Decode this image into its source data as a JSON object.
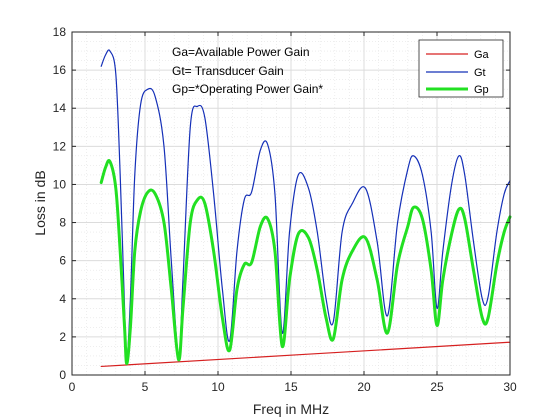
{
  "chart_data": {
    "type": "line",
    "xlabel": "Freq in MHz",
    "ylabel": "Loss in dB",
    "xlim": [
      0,
      30
    ],
    "ylim": [
      0,
      18
    ],
    "xticks": [
      0,
      5,
      10,
      15,
      20,
      25,
      30
    ],
    "yticks": [
      0,
      2,
      4,
      6,
      8,
      10,
      12,
      14,
      16,
      18
    ],
    "grid": true,
    "legend_position": "top-right",
    "annotations": [
      "Ga=Available Power Gain",
      "Gt= Transducer Gain",
      "Gp=*Operating Power Gain*"
    ],
    "series": [
      {
        "name": "Ga",
        "color": "#d62020",
        "x": [
          2,
          30
        ],
        "values": [
          0.45,
          1.72
        ]
      },
      {
        "name": "Gt",
        "color": "#1530b8",
        "x": [
          2.0,
          2.3,
          2.6,
          3.0,
          3.3,
          3.6,
          3.75,
          4.0,
          4.3,
          4.7,
          5.2,
          5.7,
          6.3,
          6.8,
          7.3,
          7.6,
          8.1,
          8.6,
          9.1,
          9.7,
          10.3,
          10.8,
          11.3,
          11.8,
          12.3,
          12.9,
          13.4,
          13.9,
          14.4,
          14.9,
          15.5,
          16.2,
          16.8,
          17.4,
          17.9,
          18.5,
          19.2,
          20.1,
          20.9,
          21.6,
          22.3,
          23.0,
          23.4,
          24.0,
          24.6,
          25.0,
          25.4,
          26.0,
          26.5,
          26.9,
          27.5,
          28.1,
          28.5,
          29.1,
          29.6,
          30.0
        ],
        "values": [
          16.2,
          16.8,
          17.0,
          15.8,
          10.5,
          3.5,
          0.7,
          4.0,
          10.5,
          14.2,
          15.0,
          14.6,
          12.0,
          6.0,
          1.0,
          5.0,
          13.0,
          14.1,
          13.5,
          9.5,
          4.5,
          1.8,
          6.5,
          9.2,
          9.6,
          11.8,
          12.1,
          9.5,
          2.2,
          7.5,
          10.5,
          9.8,
          7.5,
          4.0,
          2.8,
          7.5,
          9.0,
          9.8,
          7.0,
          3.1,
          8.0,
          10.8,
          11.5,
          10.5,
          7.5,
          3.5,
          6.5,
          10.0,
          11.5,
          10.5,
          7.0,
          4.0,
          4.1,
          7.5,
          9.5,
          10.2
        ]
      },
      {
        "name": "Gp",
        "color": "#22e022",
        "x": [
          2.0,
          2.3,
          2.6,
          3.0,
          3.3,
          3.6,
          3.75,
          4.0,
          4.3,
          4.7,
          5.2,
          5.7,
          6.3,
          6.8,
          7.3,
          7.6,
          8.1,
          8.6,
          9.1,
          9.7,
          10.3,
          10.8,
          11.3,
          11.8,
          12.3,
          12.9,
          13.4,
          13.9,
          14.4,
          14.9,
          15.5,
          16.2,
          16.8,
          17.4,
          17.9,
          18.5,
          19.2,
          20.1,
          20.9,
          21.6,
          22.3,
          23.0,
          23.4,
          24.0,
          24.6,
          25.0,
          25.4,
          26.0,
          26.5,
          26.9,
          27.5,
          28.1,
          28.5,
          29.1,
          29.6,
          30.0
        ],
        "values": [
          10.1,
          10.9,
          11.2,
          9.8,
          6.5,
          2.5,
          0.6,
          2.5,
          6.5,
          8.6,
          9.6,
          9.5,
          8.0,
          4.5,
          0.8,
          3.5,
          8.0,
          9.2,
          9.0,
          6.5,
          3.0,
          1.3,
          4.5,
          5.8,
          5.9,
          7.8,
          8.2,
          6.5,
          1.5,
          5.0,
          7.4,
          7.2,
          5.5,
          3.0,
          1.9,
          5.0,
          6.5,
          7.2,
          5.0,
          2.2,
          5.8,
          7.8,
          8.8,
          8.2,
          5.5,
          2.6,
          5.0,
          7.4,
          8.7,
          8.2,
          5.5,
          3.0,
          3.0,
          5.8,
          7.5,
          8.3
        ]
      }
    ]
  }
}
